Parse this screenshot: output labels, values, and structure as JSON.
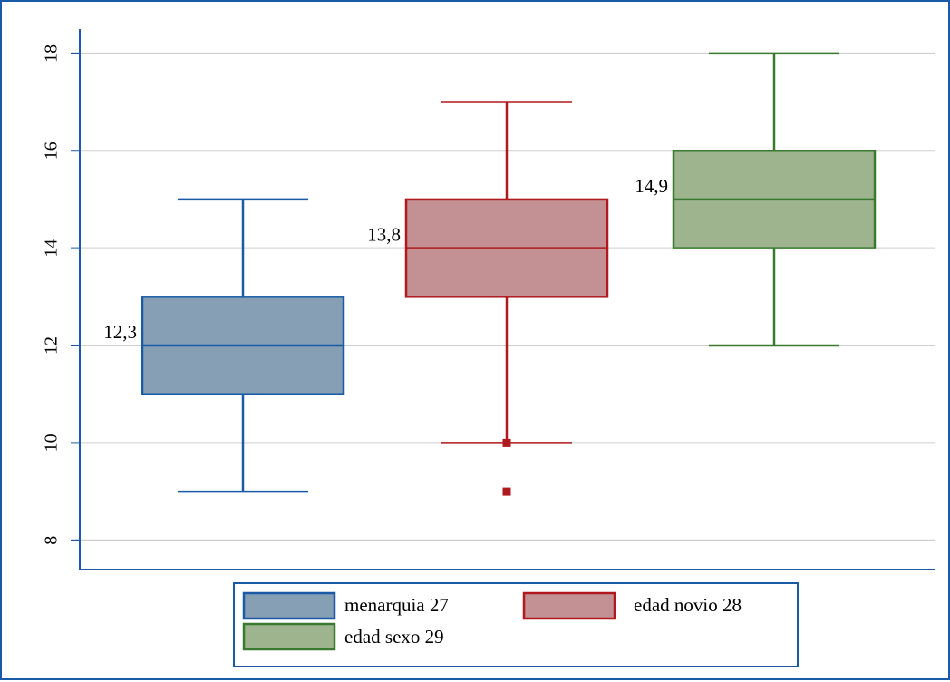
{
  "chart_data": {
    "type": "box",
    "title": "",
    "xlabel": "",
    "ylabel": "",
    "ylim": [
      7.4,
      18.5
    ],
    "yticks": [
      8,
      10,
      12,
      14,
      16,
      18
    ],
    "grid": true,
    "legend_position": "bottom",
    "series": [
      {
        "name": "menarquia 27",
        "whisker_low": 9,
        "q1": 11,
        "median": 12,
        "q3": 13,
        "whisker_high": 15,
        "outliers": [],
        "mean_label": "12,3",
        "color": "#1a5aa6",
        "fill": "#869fb4"
      },
      {
        "name": "edad novio 28",
        "whisker_low": 10,
        "q1": 13,
        "median": 14,
        "q3": 15,
        "whisker_high": 17,
        "outliers": [
          10,
          9
        ],
        "mean_label": "13,8",
        "color": "#b0191e",
        "fill": "#c39194"
      },
      {
        "name": "edad sexo 29",
        "whisker_low": 12,
        "q1": 14,
        "median": 15,
        "q3": 16,
        "whisker_high": 18,
        "outliers": [],
        "mean_label": "14,9",
        "color": "#3a7a30",
        "fill": "#9db48f"
      }
    ]
  },
  "colors": {
    "frame": "#1a5aa6",
    "axis": "#1a5aa6",
    "grid": "#cfcfcf",
    "legend_border": "#1a5aa6"
  }
}
